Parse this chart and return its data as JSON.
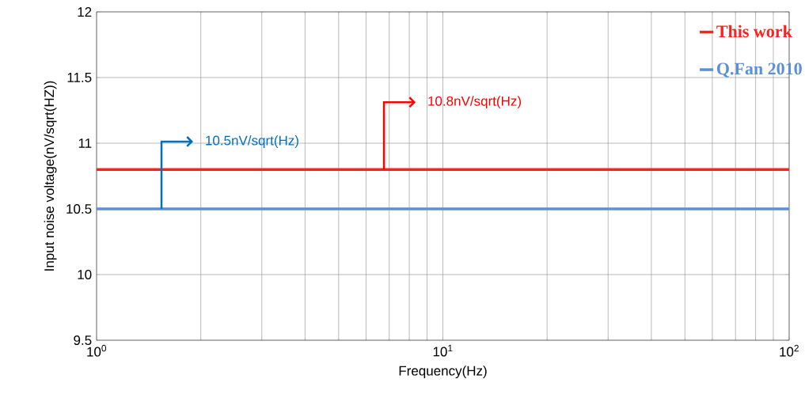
{
  "chart_data": {
    "type": "line",
    "xlabel": "Frequency(Hz)",
    "ylabel": "Input noise voltage(nV/sqrt(HZ))",
    "x": [
      1,
      100
    ],
    "series": [
      {
        "name": "This work",
        "color": "#ff2020",
        "values": [
          10.8,
          10.8
        ]
      },
      {
        "name": "Q.Fan 2010",
        "color": "#5b8fd6",
        "values": [
          10.5,
          10.5
        ]
      }
    ],
    "annotations": [
      {
        "text": "10.5nV/sqrt(Hz)",
        "x": 1.54,
        "y": 10.5
      },
      {
        "text": "10.8nV/sqrt(Hz)",
        "x": 6.76,
        "y": 10.8
      }
    ],
    "log": "x",
    "grid": true,
    "legend": "top right",
    "line_style": "solid",
    "marker": "none",
    "xlim": [
      1,
      100
    ],
    "xticks": [
      {
        "value": 1,
        "label": "10$^{0}$"
      },
      {
        "value": 10,
        "label": "10$^{1}$"
      },
      {
        "value": 100,
        "label": "10$^{2}$"
      }
    ],
    "ylim": [
      9.5,
      12
    ],
    "yticks": [
      9.5,
      10,
      10.5,
      11,
      11.5,
      12
    ]
  }
}
